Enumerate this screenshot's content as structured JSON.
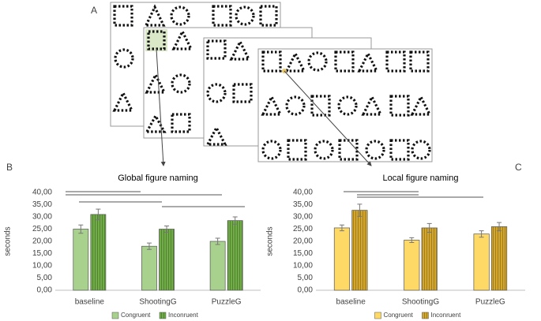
{
  "panel_labels": [
    "A",
    "B",
    "C"
  ],
  "chart_data": [
    {
      "type": "bar",
      "title": "Global figure naming",
      "y_label": "seconds",
      "categories": [
        "baseline",
        "ShootingG",
        "PuzzleG"
      ],
      "series": [
        {
          "name": "Congruent",
          "color": "#a9d18e",
          "hatch": false,
          "values": [
            25,
            18,
            20
          ],
          "errors": [
            1.7,
            1.3,
            1.3
          ]
        },
        {
          "name": "Inconruent",
          "color": "#70ad47",
          "hatch": true,
          "values": [
            31,
            25,
            28.5
          ],
          "errors": [
            2.2,
            1.3,
            1.5
          ]
        }
      ],
      "ylim": [
        0,
        40
      ],
      "yticks": [
        {
          "value": 0,
          "label": "0,00"
        },
        {
          "value": 5,
          "label": "5,00"
        },
        {
          "value": 10,
          "label": "10,00"
        },
        {
          "value": 15,
          "label": "15,00"
        },
        {
          "value": 20,
          "label": "20,00"
        },
        {
          "value": 25,
          "label": "25,00"
        },
        {
          "value": 30,
          "label": "30,00"
        },
        {
          "value": 35,
          "label": "35,00"
        },
        {
          "value": 40,
          "label": "40,00"
        }
      ],
      "legend": "bottom"
    },
    {
      "type": "bar",
      "title": "Local figure naming",
      "y_label": "seconds",
      "categories": [
        "baseline",
        "ShootingG",
        "PuzzleG"
      ],
      "series": [
        {
          "name": "Congruent",
          "color": "#ffd966",
          "hatch": false,
          "values": [
            25.5,
            20.5,
            23
          ],
          "errors": [
            1.2,
            1,
            1.3
          ]
        },
        {
          "name": "Inconruent",
          "color": "#d4a72c",
          "hatch": true,
          "values": [
            32.7,
            25.5,
            26
          ],
          "errors": [
            2.5,
            1.8,
            1.7
          ]
        }
      ],
      "ylim": [
        0,
        40
      ],
      "yticks": [
        {
          "value": 0,
          "label": "0,00"
        },
        {
          "value": 5,
          "label": "5,00"
        },
        {
          "value": 10,
          "label": "10,00"
        },
        {
          "value": 15,
          "label": "15,00"
        },
        {
          "value": 20,
          "label": "20,00"
        },
        {
          "value": 25,
          "label": "25,00"
        },
        {
          "value": 30,
          "label": "30,00"
        },
        {
          "value": 35,
          "label": "35,00"
        },
        {
          "value": 40,
          "label": "40,00"
        }
      ],
      "legend": "bottom"
    }
  ]
}
